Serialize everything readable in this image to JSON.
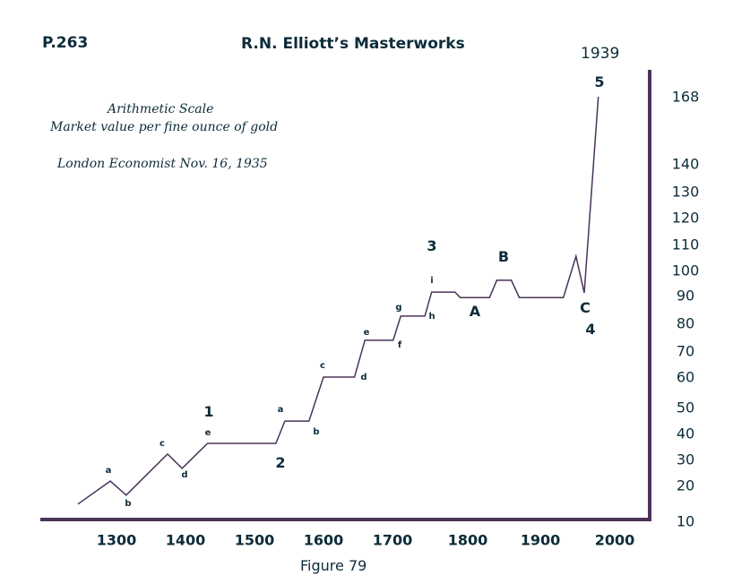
{
  "page_label": "P.263",
  "book_title": "R.N. Elliott’s Masterworks",
  "year_label": "1939",
  "notes": [
    "Arithmetic Scale",
    "Market value per fine ounce of gold",
    "London Economist Nov. 16, 1935"
  ],
  "caption": "Figure 79",
  "chart_data": {
    "type": "line",
    "title": "Market value per fine ounce of gold",
    "xlabel": "",
    "ylabel": "",
    "x_ticks": [
      "1300",
      "1400",
      "1500",
      "1600",
      "1700",
      "1800",
      "1900",
      "2000"
    ],
    "y_ticks": [
      "168",
      "140",
      "130",
      "120",
      "110",
      "100",
      "90",
      "80",
      "70",
      "60",
      "50",
      "40",
      "30",
      "20",
      "10"
    ],
    "line_color": "#4a3358",
    "axis_color": "#4a3358",
    "grid": false,
    "series": [
      {
        "name": "Gold",
        "x": [
          1244,
          1291,
          1314,
          1374,
          1395,
          1432,
          1531,
          1544,
          1579,
          1600,
          1645,
          1660,
          1701,
          1711,
          1743,
          1752,
          1783,
          1790,
          1830,
          1840,
          1860,
          1871,
          1931,
          1948,
          1959,
          1978
        ],
        "y": [
          14.8,
          21.7,
          17.3,
          32.1,
          26.6,
          36.2,
          36.2,
          44.8,
          44.8,
          60,
          60,
          73.9,
          73.9,
          82.6,
          82.6,
          91.4,
          91.4,
          89.3,
          89.3,
          96.1,
          96.1,
          89.3,
          89.3,
          105.5,
          91.1,
          168
        ]
      }
    ],
    "wave_labels": {
      "w1": "1",
      "w2": "2",
      "w3": "3",
      "w4": "4",
      "w5": "5",
      "A": "A",
      "B": "B",
      "C": "C",
      "s": [
        "a",
        "b",
        "c",
        "d",
        "e",
        "a",
        "b",
        "c",
        "d",
        "e",
        "f",
        "g",
        "h",
        "i"
      ]
    }
  }
}
